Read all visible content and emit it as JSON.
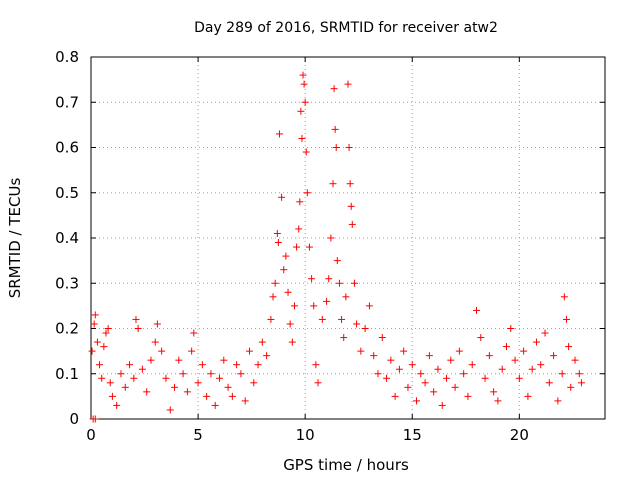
{
  "chart_data": {
    "type": "scatter",
    "title": "Day 289 of 2016, SRMTID for receiver atw2",
    "xlabel": "GPS time / hours",
    "ylabel": "SRMTID / TECUs",
    "xlim": [
      0,
      24
    ],
    "ylim": [
      0,
      0.8
    ],
    "x_ticks": [
      0,
      5,
      10,
      15,
      20
    ],
    "y_ticks": [
      0,
      0.1,
      0.2,
      0.3,
      0.4,
      0.5,
      0.6,
      0.7,
      0.8
    ],
    "x_tick_labels": [
      "0",
      "5",
      "10",
      "15",
      "20"
    ],
    "y_tick_labels": [
      "0",
      "0.1",
      "0.2",
      "0.3",
      "0.4",
      "0.5",
      "0.6",
      "0.7",
      "0.8"
    ],
    "grid": true,
    "marker": "plus",
    "color": "#ff0000",
    "series": [
      {
        "name": "SRMTID",
        "points": [
          [
            0.05,
            0.15
          ],
          [
            0.1,
            0.0
          ],
          [
            0.2,
            0.0
          ],
          [
            0.15,
            0.21
          ],
          [
            0.2,
            0.23
          ],
          [
            0.3,
            0.17
          ],
          [
            0.4,
            0.12
          ],
          [
            0.5,
            0.09
          ],
          [
            0.6,
            0.16
          ],
          [
            0.7,
            0.19
          ],
          [
            0.8,
            0.2
          ],
          [
            0.9,
            0.08
          ],
          [
            1.0,
            0.05
          ],
          [
            1.2,
            0.03
          ],
          [
            1.4,
            0.1
          ],
          [
            1.6,
            0.07
          ],
          [
            1.8,
            0.12
          ],
          [
            2.0,
            0.09
          ],
          [
            2.1,
            0.22
          ],
          [
            2.2,
            0.2
          ],
          [
            2.4,
            0.11
          ],
          [
            2.6,
            0.06
          ],
          [
            2.8,
            0.13
          ],
          [
            3.0,
            0.17
          ],
          [
            3.1,
            0.21
          ],
          [
            3.3,
            0.15
          ],
          [
            3.5,
            0.09
          ],
          [
            3.7,
            0.02
          ],
          [
            3.9,
            0.07
          ],
          [
            4.1,
            0.13
          ],
          [
            4.3,
            0.1
          ],
          [
            4.5,
            0.06
          ],
          [
            4.7,
            0.15
          ],
          [
            4.8,
            0.19
          ],
          [
            5.0,
            0.08
          ],
          [
            5.2,
            0.12
          ],
          [
            5.4,
            0.05
          ],
          [
            5.6,
            0.1
          ],
          [
            5.8,
            0.03
          ],
          [
            6.0,
            0.09
          ],
          [
            6.2,
            0.13
          ],
          [
            6.4,
            0.07
          ],
          [
            6.6,
            0.05
          ],
          [
            6.8,
            0.12
          ],
          [
            7.0,
            0.1
          ],
          [
            7.2,
            0.04
          ],
          [
            7.4,
            0.15
          ],
          [
            7.6,
            0.08
          ],
          [
            7.8,
            0.12
          ],
          [
            8.0,
            0.17
          ],
          [
            8.2,
            0.14
          ],
          [
            8.4,
            0.22
          ],
          [
            8.5,
            0.27
          ],
          [
            8.6,
            0.3
          ],
          [
            8.7,
            0.41
          ],
          [
            8.75,
            0.39
          ],
          [
            8.8,
            0.63
          ],
          [
            8.9,
            0.49
          ],
          [
            9.0,
            0.33
          ],
          [
            9.1,
            0.36
          ],
          [
            9.2,
            0.28
          ],
          [
            9.3,
            0.21
          ],
          [
            9.4,
            0.17
          ],
          [
            9.5,
            0.25
          ],
          [
            9.6,
            0.38
          ],
          [
            9.7,
            0.42
          ],
          [
            9.75,
            0.48
          ],
          [
            9.8,
            0.68
          ],
          [
            9.85,
            0.62
          ],
          [
            9.9,
            0.76
          ],
          [
            9.95,
            0.74
          ],
          [
            10.0,
            0.7
          ],
          [
            10.05,
            0.59
          ],
          [
            10.1,
            0.5
          ],
          [
            10.2,
            0.38
          ],
          [
            10.3,
            0.31
          ],
          [
            10.4,
            0.25
          ],
          [
            10.5,
            0.12
          ],
          [
            10.6,
            0.08
          ],
          [
            10.8,
            0.22
          ],
          [
            11.0,
            0.26
          ],
          [
            11.1,
            0.31
          ],
          [
            11.2,
            0.4
          ],
          [
            11.3,
            0.52
          ],
          [
            11.35,
            0.73
          ],
          [
            11.4,
            0.64
          ],
          [
            11.45,
            0.6
          ],
          [
            11.5,
            0.35
          ],
          [
            11.6,
            0.3
          ],
          [
            11.7,
            0.22
          ],
          [
            11.8,
            0.18
          ],
          [
            11.9,
            0.27
          ],
          [
            12.0,
            0.74
          ],
          [
            12.05,
            0.6
          ],
          [
            12.1,
            0.52
          ],
          [
            12.15,
            0.47
          ],
          [
            12.2,
            0.43
          ],
          [
            12.3,
            0.3
          ],
          [
            12.4,
            0.21
          ],
          [
            12.6,
            0.15
          ],
          [
            12.8,
            0.2
          ],
          [
            13.0,
            0.25
          ],
          [
            13.2,
            0.14
          ],
          [
            13.4,
            0.1
          ],
          [
            13.6,
            0.18
          ],
          [
            13.8,
            0.09
          ],
          [
            14.0,
            0.13
          ],
          [
            14.2,
            0.05
          ],
          [
            14.4,
            0.11
          ],
          [
            14.6,
            0.15
          ],
          [
            14.8,
            0.07
          ],
          [
            15.0,
            0.12
          ],
          [
            15.2,
            0.04
          ],
          [
            15.4,
            0.1
          ],
          [
            15.6,
            0.08
          ],
          [
            15.8,
            0.14
          ],
          [
            16.0,
            0.06
          ],
          [
            16.2,
            0.11
          ],
          [
            16.4,
            0.03
          ],
          [
            16.6,
            0.09
          ],
          [
            16.8,
            0.13
          ],
          [
            17.0,
            0.07
          ],
          [
            17.2,
            0.15
          ],
          [
            17.4,
            0.1
          ],
          [
            17.6,
            0.05
          ],
          [
            17.8,
            0.12
          ],
          [
            18.0,
            0.24
          ],
          [
            18.2,
            0.18
          ],
          [
            18.4,
            0.09
          ],
          [
            18.6,
            0.14
          ],
          [
            18.8,
            0.06
          ],
          [
            19.0,
            0.04
          ],
          [
            19.2,
            0.11
          ],
          [
            19.4,
            0.16
          ],
          [
            19.6,
            0.2
          ],
          [
            19.8,
            0.13
          ],
          [
            20.0,
            0.09
          ],
          [
            20.2,
            0.15
          ],
          [
            20.4,
            0.05
          ],
          [
            20.6,
            0.11
          ],
          [
            20.8,
            0.17
          ],
          [
            21.0,
            0.12
          ],
          [
            21.2,
            0.19
          ],
          [
            21.4,
            0.08
          ],
          [
            21.6,
            0.14
          ],
          [
            21.8,
            0.04
          ],
          [
            22.0,
            0.1
          ],
          [
            22.1,
            0.27
          ],
          [
            22.2,
            0.22
          ],
          [
            22.3,
            0.16
          ],
          [
            22.4,
            0.07
          ],
          [
            22.6,
            0.13
          ],
          [
            22.8,
            0.1
          ],
          [
            22.9,
            0.08
          ]
        ]
      }
    ]
  }
}
